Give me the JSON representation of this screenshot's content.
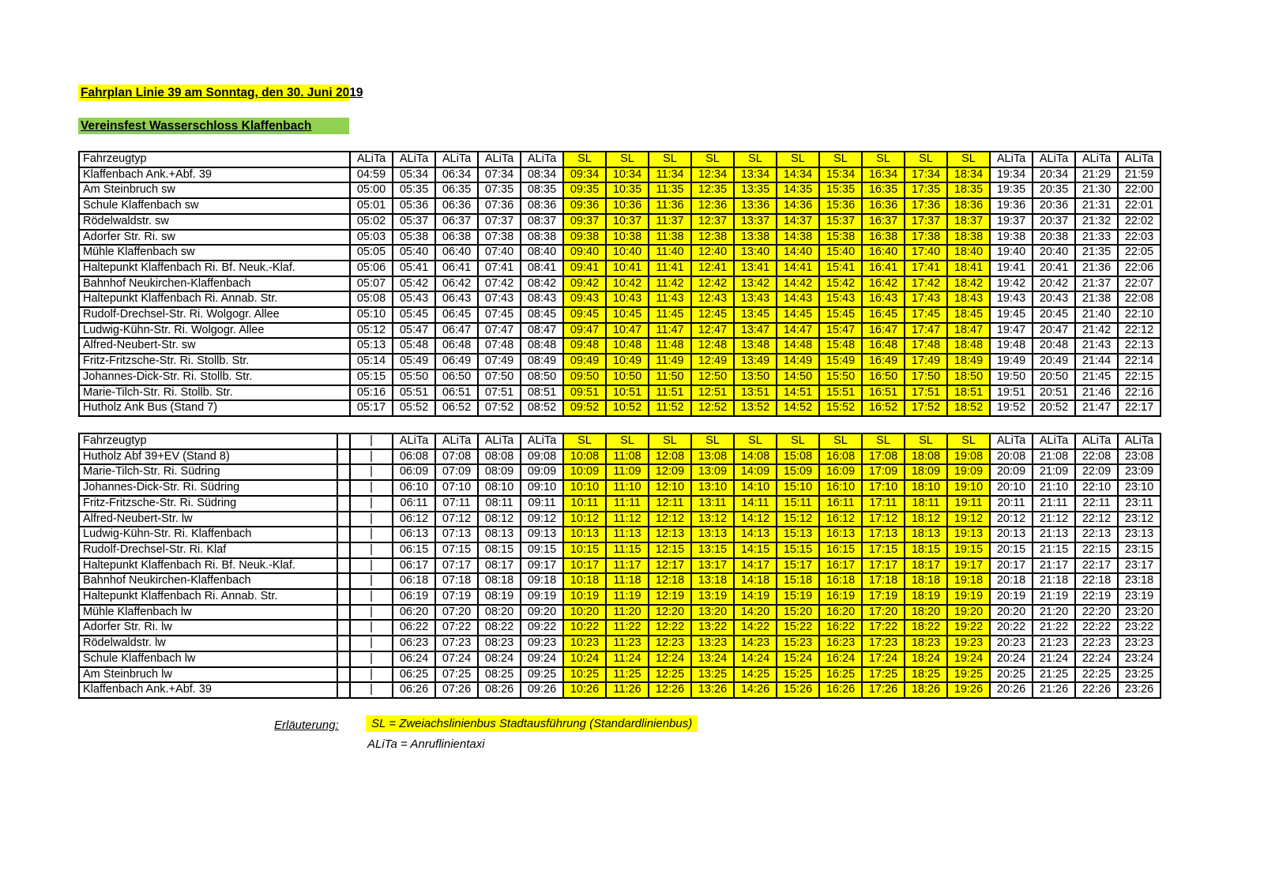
{
  "header": {
    "title": "Fahrplan Linie 39 am Sonntag, den 30. Juni 2019",
    "subtitle": "Vereinsfest Wasserschloss Klaffenbach"
  },
  "colors": {
    "highlight_yellow": "#FFFF00",
    "highlight_green": "#92D050",
    "border": "#000000"
  },
  "legend": {
    "label": "Erläuterung:",
    "line1": "SL = Zweiachslinienbus Stadtausführung (Standardlinienbus)",
    "line2": "ALiTa = Anruflinientaxi"
  },
  "tables": [
    {
      "id": "table-1",
      "corner_label": "Fahrzeugtyp",
      "has_spacer": false,
      "columns": [
        "ALiTa",
        "ALiTa",
        "ALiTa",
        "ALiTa",
        "ALiTa",
        "SL",
        "SL",
        "SL",
        "SL",
        "SL",
        "SL",
        "SL",
        "SL",
        "SL",
        "SL",
        "ALiTa",
        "ALiTa",
        "ALiTa",
        "ALiTa"
      ],
      "rows": [
        {
          "stop": "Klaffenbach Ank.+Abf. 39",
          "times": [
            "04:59",
            "05:34",
            "06:34",
            "07:34",
            "08:34",
            "09:34",
            "10:34",
            "11:34",
            "12:34",
            "13:34",
            "14:34",
            "15:34",
            "16:34",
            "17:34",
            "18:34",
            "19:34",
            "20:34",
            "21:29",
            "21:59"
          ]
        },
        {
          "stop": "Am Steinbruch sw",
          "times": [
            "05:00",
            "05:35",
            "06:35",
            "07:35",
            "08:35",
            "09:35",
            "10:35",
            "11:35",
            "12:35",
            "13:35",
            "14:35",
            "15:35",
            "16:35",
            "17:35",
            "18:35",
            "19:35",
            "20:35",
            "21:30",
            "22:00"
          ]
        },
        {
          "stop": "Schule Klaffenbach sw",
          "times": [
            "05:01",
            "05:36",
            "06:36",
            "07:36",
            "08:36",
            "09:36",
            "10:36",
            "11:36",
            "12:36",
            "13:36",
            "14:36",
            "15:36",
            "16:36",
            "17:36",
            "18:36",
            "19:36",
            "20:36",
            "21:31",
            "22:01"
          ]
        },
        {
          "stop": "Rödelwaldstr. sw",
          "times": [
            "05:02",
            "05:37",
            "06:37",
            "07:37",
            "08:37",
            "09:37",
            "10:37",
            "11:37",
            "12:37",
            "13:37",
            "14:37",
            "15:37",
            "16:37",
            "17:37",
            "18:37",
            "19:37",
            "20:37",
            "21:32",
            "22:02"
          ]
        },
        {
          "stop": "Adorfer Str. Ri. sw",
          "times": [
            "05:03",
            "05:38",
            "06:38",
            "07:38",
            "08:38",
            "09:38",
            "10:38",
            "11:38",
            "12:38",
            "13:38",
            "14:38",
            "15:38",
            "16:38",
            "17:38",
            "18:38",
            "19:38",
            "20:38",
            "21:33",
            "22:03"
          ]
        },
        {
          "stop": "Mühle Klaffenbach sw",
          "times": [
            "05:05",
            "05:40",
            "06:40",
            "07:40",
            "08:40",
            "09:40",
            "10:40",
            "11:40",
            "12:40",
            "13:40",
            "14:40",
            "15:40",
            "16:40",
            "17:40",
            "18:40",
            "19:40",
            "20:40",
            "21:35",
            "22:05"
          ]
        },
        {
          "stop": "Haltepunkt Klaffenbach Ri. Bf. Neuk.-Klaf.",
          "times": [
            "05:06",
            "05:41",
            "06:41",
            "07:41",
            "08:41",
            "09:41",
            "10:41",
            "11:41",
            "12:41",
            "13:41",
            "14:41",
            "15:41",
            "16:41",
            "17:41",
            "18:41",
            "19:41",
            "20:41",
            "21:36",
            "22:06"
          ]
        },
        {
          "stop": "Bahnhof Neukirchen-Klaffenbach",
          "times": [
            "05:07",
            "05:42",
            "06:42",
            "07:42",
            "08:42",
            "09:42",
            "10:42",
            "11:42",
            "12:42",
            "13:42",
            "14:42",
            "15:42",
            "16:42",
            "17:42",
            "18:42",
            "19:42",
            "20:42",
            "21:37",
            "22:07"
          ]
        },
        {
          "stop": "Haltepunkt Klaffenbach Ri. Annab. Str.",
          "times": [
            "05:08",
            "05:43",
            "06:43",
            "07:43",
            "08:43",
            "09:43",
            "10:43",
            "11:43",
            "12:43",
            "13:43",
            "14:43",
            "15:43",
            "16:43",
            "17:43",
            "18:43",
            "19:43",
            "20:43",
            "21:38",
            "22:08"
          ]
        },
        {
          "stop": "Rudolf-Drechsel-Str. Ri. Wolgogr. Allee",
          "times": [
            "05:10",
            "05:45",
            "06:45",
            "07:45",
            "08:45",
            "09:45",
            "10:45",
            "11:45",
            "12:45",
            "13:45",
            "14:45",
            "15:45",
            "16:45",
            "17:45",
            "18:45",
            "19:45",
            "20:45",
            "21:40",
            "22:10"
          ]
        },
        {
          "stop": "Ludwig-Kühn-Str. Ri. Wolgogr. Allee",
          "times": [
            "05:12",
            "05:47",
            "06:47",
            "07:47",
            "08:47",
            "09:47",
            "10:47",
            "11:47",
            "12:47",
            "13:47",
            "14:47",
            "15:47",
            "16:47",
            "17:47",
            "18:47",
            "19:47",
            "20:47",
            "21:42",
            "22:12"
          ]
        },
        {
          "stop": "Alfred-Neubert-Str. sw",
          "times": [
            "05:13",
            "05:48",
            "06:48",
            "07:48",
            "08:48",
            "09:48",
            "10:48",
            "11:48",
            "12:48",
            "13:48",
            "14:48",
            "15:48",
            "16:48",
            "17:48",
            "18:48",
            "19:48",
            "20:48",
            "21:43",
            "22:13"
          ]
        },
        {
          "stop": "Fritz-Fritzsche-Str. Ri. Stollb. Str.",
          "times": [
            "05:14",
            "05:49",
            "06:49",
            "07:49",
            "08:49",
            "09:49",
            "10:49",
            "11:49",
            "12:49",
            "13:49",
            "14:49",
            "15:49",
            "16:49",
            "17:49",
            "18:49",
            "19:49",
            "20:49",
            "21:44",
            "22:14"
          ]
        },
        {
          "stop": "Johannes-Dick-Str. Ri. Stollb. Str.",
          "times": [
            "05:15",
            "05:50",
            "06:50",
            "07:50",
            "08:50",
            "09:50",
            "10:50",
            "11:50",
            "12:50",
            "13:50",
            "14:50",
            "15:50",
            "16:50",
            "17:50",
            "18:50",
            "19:50",
            "20:50",
            "21:45",
            "22:15"
          ]
        },
        {
          "stop": "Marie-Tilch-Str. Ri. Stollb. Str.",
          "times": [
            "05:16",
            "05:51",
            "06:51",
            "07:51",
            "08:51",
            "09:51",
            "10:51",
            "11:51",
            "12:51",
            "13:51",
            "14:51",
            "15:51",
            "16:51",
            "17:51",
            "18:51",
            "19:51",
            "20:51",
            "21:46",
            "22:16"
          ]
        },
        {
          "stop": "Hutholz Ank Bus (Stand 7)",
          "times": [
            "05:17",
            "05:52",
            "06:52",
            "07:52",
            "08:52",
            "09:52",
            "10:52",
            "11:52",
            "12:52",
            "13:52",
            "14:52",
            "15:52",
            "16:52",
            "17:52",
            "18:52",
            "19:52",
            "20:52",
            "21:47",
            "22:17"
          ]
        }
      ]
    },
    {
      "id": "table-2",
      "corner_label": "Fahrzeugtyp",
      "has_spacer": true,
      "columns": [
        "|",
        "ALiTa",
        "ALiTa",
        "ALiTa",
        "ALiTa",
        "SL",
        "SL",
        "SL",
        "SL",
        "SL",
        "SL",
        "SL",
        "SL",
        "SL",
        "SL",
        "ALiTa",
        "ALiTa",
        "ALiTa",
        "ALiTa"
      ],
      "rows": [
        {
          "stop": "Hutholz Abf 39+EV (Stand 8)",
          "times": [
            "|",
            "06:08",
            "07:08",
            "08:08",
            "09:08",
            "10:08",
            "11:08",
            "12:08",
            "13:08",
            "14:08",
            "15:08",
            "16:08",
            "17:08",
            "18:08",
            "19:08",
            "20:08",
            "21:08",
            "22:08",
            "23:08"
          ]
        },
        {
          "stop": "Marie-Tilch-Str. Ri. Südring",
          "times": [
            "|",
            "06:09",
            "07:09",
            "08:09",
            "09:09",
            "10:09",
            "11:09",
            "12:09",
            "13:09",
            "14:09",
            "15:09",
            "16:09",
            "17:09",
            "18:09",
            "19:09",
            "20:09",
            "21:09",
            "22:09",
            "23:09"
          ]
        },
        {
          "stop": "Johannes-Dick-Str. Ri. Südring",
          "times": [
            "|",
            "06:10",
            "07:10",
            "08:10",
            "09:10",
            "10:10",
            "11:10",
            "12:10",
            "13:10",
            "14:10",
            "15:10",
            "16:10",
            "17:10",
            "18:10",
            "19:10",
            "20:10",
            "21:10",
            "22:10",
            "23:10"
          ]
        },
        {
          "stop": "Fritz-Fritzsche-Str. Ri. Südring",
          "times": [
            "|",
            "06:11",
            "07:11",
            "08:11",
            "09:11",
            "10:11",
            "11:11",
            "12:11",
            "13:11",
            "14:11",
            "15:11",
            "16:11",
            "17:11",
            "18:11",
            "19:11",
            "20:11",
            "21:11",
            "22:11",
            "23:11"
          ]
        },
        {
          "stop": "Alfred-Neubert-Str. lw",
          "times": [
            "|",
            "06:12",
            "07:12",
            "08:12",
            "09:12",
            "10:12",
            "11:12",
            "12:12",
            "13:12",
            "14:12",
            "15:12",
            "16:12",
            "17:12",
            "18:12",
            "19:12",
            "20:12",
            "21:12",
            "22:12",
            "23:12"
          ]
        },
        {
          "stop": "Ludwig-Kühn-Str. Ri. Klaffenbach",
          "times": [
            "|",
            "06:13",
            "07:13",
            "08:13",
            "09:13",
            "10:13",
            "11:13",
            "12:13",
            "13:13",
            "14:13",
            "15:13",
            "16:13",
            "17:13",
            "18:13",
            "19:13",
            "20:13",
            "21:13",
            "22:13",
            "23:13"
          ]
        },
        {
          "stop": "Rudolf-Drechsel-Str. Ri. Klaf",
          "times": [
            "|",
            "06:15",
            "07:15",
            "08:15",
            "09:15",
            "10:15",
            "11:15",
            "12:15",
            "13:15",
            "14:15",
            "15:15",
            "16:15",
            "17:15",
            "18:15",
            "19:15",
            "20:15",
            "21:15",
            "22:15",
            "23:15"
          ]
        },
        {
          "stop": "Haltepunkt Klaffenbach Ri. Bf. Neuk.-Klaf.",
          "times": [
            "|",
            "06:17",
            "07:17",
            "08:17",
            "09:17",
            "10:17",
            "11:17",
            "12:17",
            "13:17",
            "14:17",
            "15:17",
            "16:17",
            "17:17",
            "18:17",
            "19:17",
            "20:17",
            "21:17",
            "22:17",
            "23:17"
          ]
        },
        {
          "stop": "Bahnhof Neukirchen-Klaffenbach",
          "times": [
            "|",
            "06:18",
            "07:18",
            "08:18",
            "09:18",
            "10:18",
            "11:18",
            "12:18",
            "13:18",
            "14:18",
            "15:18",
            "16:18",
            "17:18",
            "18:18",
            "19:18",
            "20:18",
            "21:18",
            "22:18",
            "23:18"
          ]
        },
        {
          "stop": "Haltepunkt Klaffenbach Ri. Annab. Str.",
          "times": [
            "|",
            "06:19",
            "07:19",
            "08:19",
            "09:19",
            "10:19",
            "11:19",
            "12:19",
            "13:19",
            "14:19",
            "15:19",
            "16:19",
            "17:19",
            "18:19",
            "19:19",
            "20:19",
            "21:19",
            "22:19",
            "23:19"
          ]
        },
        {
          "stop": "Mühle Klaffenbach lw",
          "times": [
            "|",
            "06:20",
            "07:20",
            "08:20",
            "09:20",
            "10:20",
            "11:20",
            "12:20",
            "13:20",
            "14:20",
            "15:20",
            "16:20",
            "17:20",
            "18:20",
            "19:20",
            "20:20",
            "21:20",
            "22:20",
            "23:20"
          ]
        },
        {
          "stop": "Adorfer Str. Ri. lw",
          "times": [
            "|",
            "06:22",
            "07:22",
            "08:22",
            "09:22",
            "10:22",
            "11:22",
            "12:22",
            "13:22",
            "14:22",
            "15:22",
            "16:22",
            "17:22",
            "18:22",
            "19:22",
            "20:22",
            "21:22",
            "22:22",
            "23:22"
          ]
        },
        {
          "stop": "Rödelwaldstr. lw",
          "times": [
            "|",
            "06:23",
            "07:23",
            "08:23",
            "09:23",
            "10:23",
            "11:23",
            "12:23",
            "13:23",
            "14:23",
            "15:23",
            "16:23",
            "17:23",
            "18:23",
            "19:23",
            "20:23",
            "21:23",
            "22:23",
            "23:23"
          ]
        },
        {
          "stop": "Schule Klaffenbach lw",
          "times": [
            "|",
            "06:24",
            "07:24",
            "08:24",
            "09:24",
            "10:24",
            "11:24",
            "12:24",
            "13:24",
            "14:24",
            "15:24",
            "16:24",
            "17:24",
            "18:24",
            "19:24",
            "20:24",
            "21:24",
            "22:24",
            "23:24"
          ]
        },
        {
          "stop": "Am Steinbruch lw",
          "times": [
            "|",
            "06:25",
            "07:25",
            "08:25",
            "09:25",
            "10:25",
            "11:25",
            "12:25",
            "13:25",
            "14:25",
            "15:25",
            "16:25",
            "17:25",
            "18:25",
            "19:25",
            "20:25",
            "21:25",
            "22:25",
            "23:25"
          ]
        },
        {
          "stop": "Klaffenbach Ank.+Abf. 39",
          "times": [
            "|",
            "06:26",
            "07:26",
            "08:26",
            "09:26",
            "10:26",
            "11:26",
            "12:26",
            "13:26",
            "14:26",
            "15:26",
            "16:26",
            "17:26",
            "18:26",
            "19:26",
            "20:26",
            "21:26",
            "22:26",
            "23:26"
          ]
        }
      ]
    }
  ]
}
